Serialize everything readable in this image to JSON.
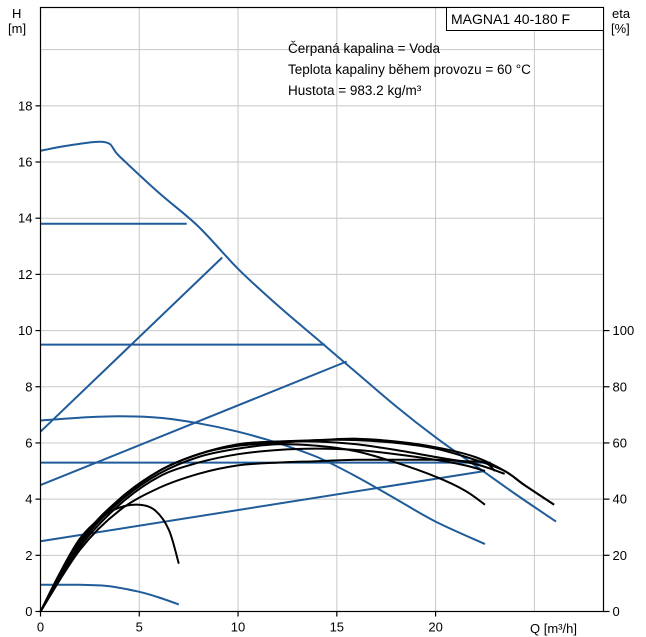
{
  "model_label": "MAGNA1 40-180 F",
  "info_lines": [
    "Čerpaná kapalina = Voda",
    "Teplota kapaliny během provozu = 60 °C",
    "Hustota = 983.2 kg/m³"
  ],
  "colors": {
    "blue": "#1f5c99",
    "black": "#000000",
    "grid": "#c8c8c8"
  },
  "chart_data": {
    "type": "line",
    "x_axis": {
      "label": "Q [m³/h]",
      "range": [
        0,
        28.5
      ],
      "ticks": [
        0,
        5,
        10,
        15,
        20
      ]
    },
    "y_left": {
      "label_top": "H",
      "label_bottom": "[m]",
      "range": [
        0,
        21.5
      ],
      "ticks": [
        0,
        2,
        4,
        6,
        8,
        10,
        12,
        14,
        16,
        18
      ]
    },
    "y_right": {
      "label_top": "eta",
      "label_bottom": "[%]",
      "range": [
        0,
        100
      ],
      "ticks": [
        0,
        20,
        40,
        60,
        80,
        100
      ],
      "maps_to_left_range": [
        0,
        10
      ]
    },
    "grid": true,
    "blue_series": [
      {
        "points": [
          [
            0,
            16.4
          ],
          [
            1.5,
            16.6
          ],
          [
            3.3,
            16.7
          ],
          [
            4,
            16.2
          ],
          [
            6,
            14.9
          ],
          [
            8,
            13.7
          ],
          [
            10,
            12.2
          ],
          [
            12,
            10.9
          ],
          [
            14,
            9.7
          ],
          [
            16,
            8.5
          ],
          [
            18,
            7.3
          ],
          [
            20,
            6.2
          ],
          [
            22,
            5.2
          ],
          [
            24,
            4.2
          ],
          [
            26.1,
            3.2
          ]
        ]
      },
      {
        "points": [
          [
            0,
            13.8
          ],
          [
            7.4,
            13.8
          ]
        ]
      },
      {
        "points": [
          [
            0,
            9.5
          ],
          [
            14.4,
            9.5
          ]
        ]
      },
      {
        "points": [
          [
            0,
            5.3
          ],
          [
            22.8,
            5.3
          ]
        ]
      },
      {
        "points": [
          [
            0,
            6.4
          ],
          [
            9.2,
            12.6
          ]
        ]
      },
      {
        "points": [
          [
            0,
            4.5
          ],
          [
            15.5,
            8.9
          ]
        ]
      },
      {
        "points": [
          [
            0,
            2.5
          ],
          [
            22.5,
            5.0
          ]
        ]
      },
      {
        "points": [
          [
            0,
            6.8
          ],
          [
            2,
            6.9
          ],
          [
            4,
            6.95
          ],
          [
            6,
            6.9
          ],
          [
            8,
            6.7
          ],
          [
            10,
            6.4
          ],
          [
            12,
            6.0
          ],
          [
            14,
            5.5
          ],
          [
            16,
            4.8
          ],
          [
            18,
            4.0
          ],
          [
            20,
            3.2
          ],
          [
            22.5,
            2.4
          ]
        ]
      },
      {
        "points": [
          [
            0,
            0.95
          ],
          [
            2,
            0.95
          ],
          [
            3.5,
            0.9
          ],
          [
            5,
            0.7
          ],
          [
            6,
            0.5
          ],
          [
            7,
            0.25
          ]
        ]
      }
    ],
    "black_series": [
      {
        "points": [
          [
            0,
            0
          ],
          [
            1,
            1.4
          ],
          [
            2,
            2.6
          ],
          [
            3,
            3.3
          ],
          [
            4,
            3.7
          ],
          [
            5,
            3.8
          ],
          [
            5.8,
            3.6
          ],
          [
            6.5,
            2.9
          ],
          [
            7,
            1.7
          ]
        ]
      },
      {
        "points": [
          [
            0,
            0
          ],
          [
            2,
            2.2
          ],
          [
            4,
            3.6
          ],
          [
            6,
            4.4
          ],
          [
            8,
            4.9
          ],
          [
            10,
            5.2
          ],
          [
            12,
            5.3
          ],
          [
            14,
            5.35
          ],
          [
            16,
            5.4
          ],
          [
            18,
            5.4
          ],
          [
            20,
            5.4
          ],
          [
            21.5,
            5.35
          ],
          [
            22.5,
            5.3
          ],
          [
            23,
            5.0
          ]
        ]
      },
      {
        "points": [
          [
            0,
            0
          ],
          [
            2,
            2.3
          ],
          [
            4,
            3.8
          ],
          [
            6,
            4.8
          ],
          [
            8,
            5.3
          ],
          [
            10,
            5.6
          ],
          [
            12,
            5.75
          ],
          [
            14,
            5.8
          ],
          [
            16,
            5.75
          ],
          [
            18,
            5.6
          ],
          [
            20,
            5.4
          ],
          [
            21.5,
            5.2
          ],
          [
            22.5,
            5.0
          ]
        ]
      },
      {
        "points": [
          [
            0,
            0
          ],
          [
            2,
            2.4
          ],
          [
            4,
            3.9
          ],
          [
            6,
            4.9
          ],
          [
            8,
            5.5
          ],
          [
            10,
            5.8
          ],
          [
            12,
            5.95
          ],
          [
            14,
            5.9
          ],
          [
            16,
            5.7
          ],
          [
            18,
            5.3
          ],
          [
            20,
            4.8
          ],
          [
            21.5,
            4.3
          ],
          [
            22.5,
            3.8
          ]
        ]
      },
      {
        "points": [
          [
            0,
            0
          ],
          [
            2,
            2.5
          ],
          [
            4,
            4.0
          ],
          [
            6,
            5.0
          ],
          [
            8,
            5.6
          ],
          [
            10,
            5.95
          ],
          [
            12,
            6.05
          ],
          [
            14,
            6.05
          ],
          [
            16,
            5.95
          ],
          [
            18,
            5.75
          ],
          [
            20,
            5.5
          ],
          [
            22,
            5.25
          ],
          [
            23.5,
            4.9
          ]
        ]
      },
      {
        "points": [
          [
            0,
            0
          ],
          [
            2,
            2.45
          ],
          [
            4,
            3.95
          ],
          [
            6,
            5.0
          ],
          [
            8,
            5.6
          ],
          [
            10,
            5.9
          ],
          [
            12,
            6.0
          ],
          [
            14,
            6.1
          ],
          [
            16,
            6.1
          ],
          [
            18,
            6.0
          ],
          [
            20,
            5.8
          ],
          [
            22,
            5.4
          ],
          [
            23.5,
            5.0
          ],
          [
            24.5,
            4.5
          ],
          [
            26,
            3.8
          ]
        ]
      },
      {
        "points": [
          [
            0,
            0
          ],
          [
            2,
            2.5
          ],
          [
            4,
            4.0
          ],
          [
            6,
            5.0
          ],
          [
            8,
            5.6
          ],
          [
            10,
            5.95
          ],
          [
            12,
            6.05
          ],
          [
            14,
            6.1
          ],
          [
            16,
            6.15
          ],
          [
            18,
            6.05
          ],
          [
            20,
            5.85
          ],
          [
            22,
            5.5
          ],
          [
            23.5,
            5.0
          ],
          [
            24.5,
            4.5
          ],
          [
            26,
            3.8
          ]
        ]
      }
    ]
  }
}
